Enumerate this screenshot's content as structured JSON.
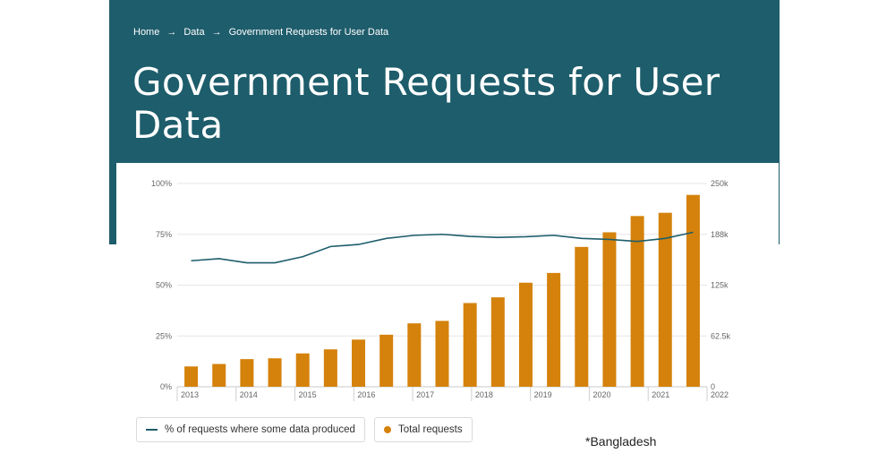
{
  "breadcrumb": {
    "home": "Home",
    "data": "Data",
    "current": "Government Requests for User Data",
    "separator": "→"
  },
  "page": {
    "title": "Government Requests for User Data"
  },
  "legend": {
    "line_label": "% of requests where some data produced",
    "bar_label": "Total requests"
  },
  "footnote": "*Bangladesh",
  "colors": {
    "header": "#1e5d6b",
    "bars": "#d4820b",
    "line": "#1e5d6b"
  },
  "chart_data": {
    "type": "bar",
    "title": "",
    "xlabel": "",
    "ylabel": "",
    "x_axis_labels": [
      "2013",
      "2014",
      "2015",
      "2016",
      "2017",
      "2018",
      "2019",
      "2020",
      "2021",
      "2022"
    ],
    "y_left_ticks": [
      "0%",
      "25%",
      "50%",
      "75%",
      "100%"
    ],
    "y_right_ticks": [
      "0",
      "62.5k",
      "125k",
      "188k",
      "250k"
    ],
    "ylim_left": [
      0,
      100
    ],
    "ylim_right": [
      0,
      250000
    ],
    "grid": true,
    "legend_position": "bottom-left",
    "series": [
      {
        "name": "Total requests",
        "type": "bar",
        "axis": "right",
        "values": [
          25000,
          28000,
          34000,
          35000,
          41000,
          46000,
          58000,
          64000,
          78000,
          81000,
          103000,
          110000,
          128000,
          140000,
          172000,
          190000,
          210000,
          214000,
          236000
        ]
      },
      {
        "name": "% of requests where some data produced",
        "type": "line",
        "axis": "left",
        "values": [
          62,
          63,
          61,
          61,
          64,
          69,
          70,
          73,
          74.5,
          75,
          74,
          73.5,
          73.8,
          74.5,
          73,
          72.5,
          71.5,
          73,
          76
        ]
      }
    ]
  }
}
